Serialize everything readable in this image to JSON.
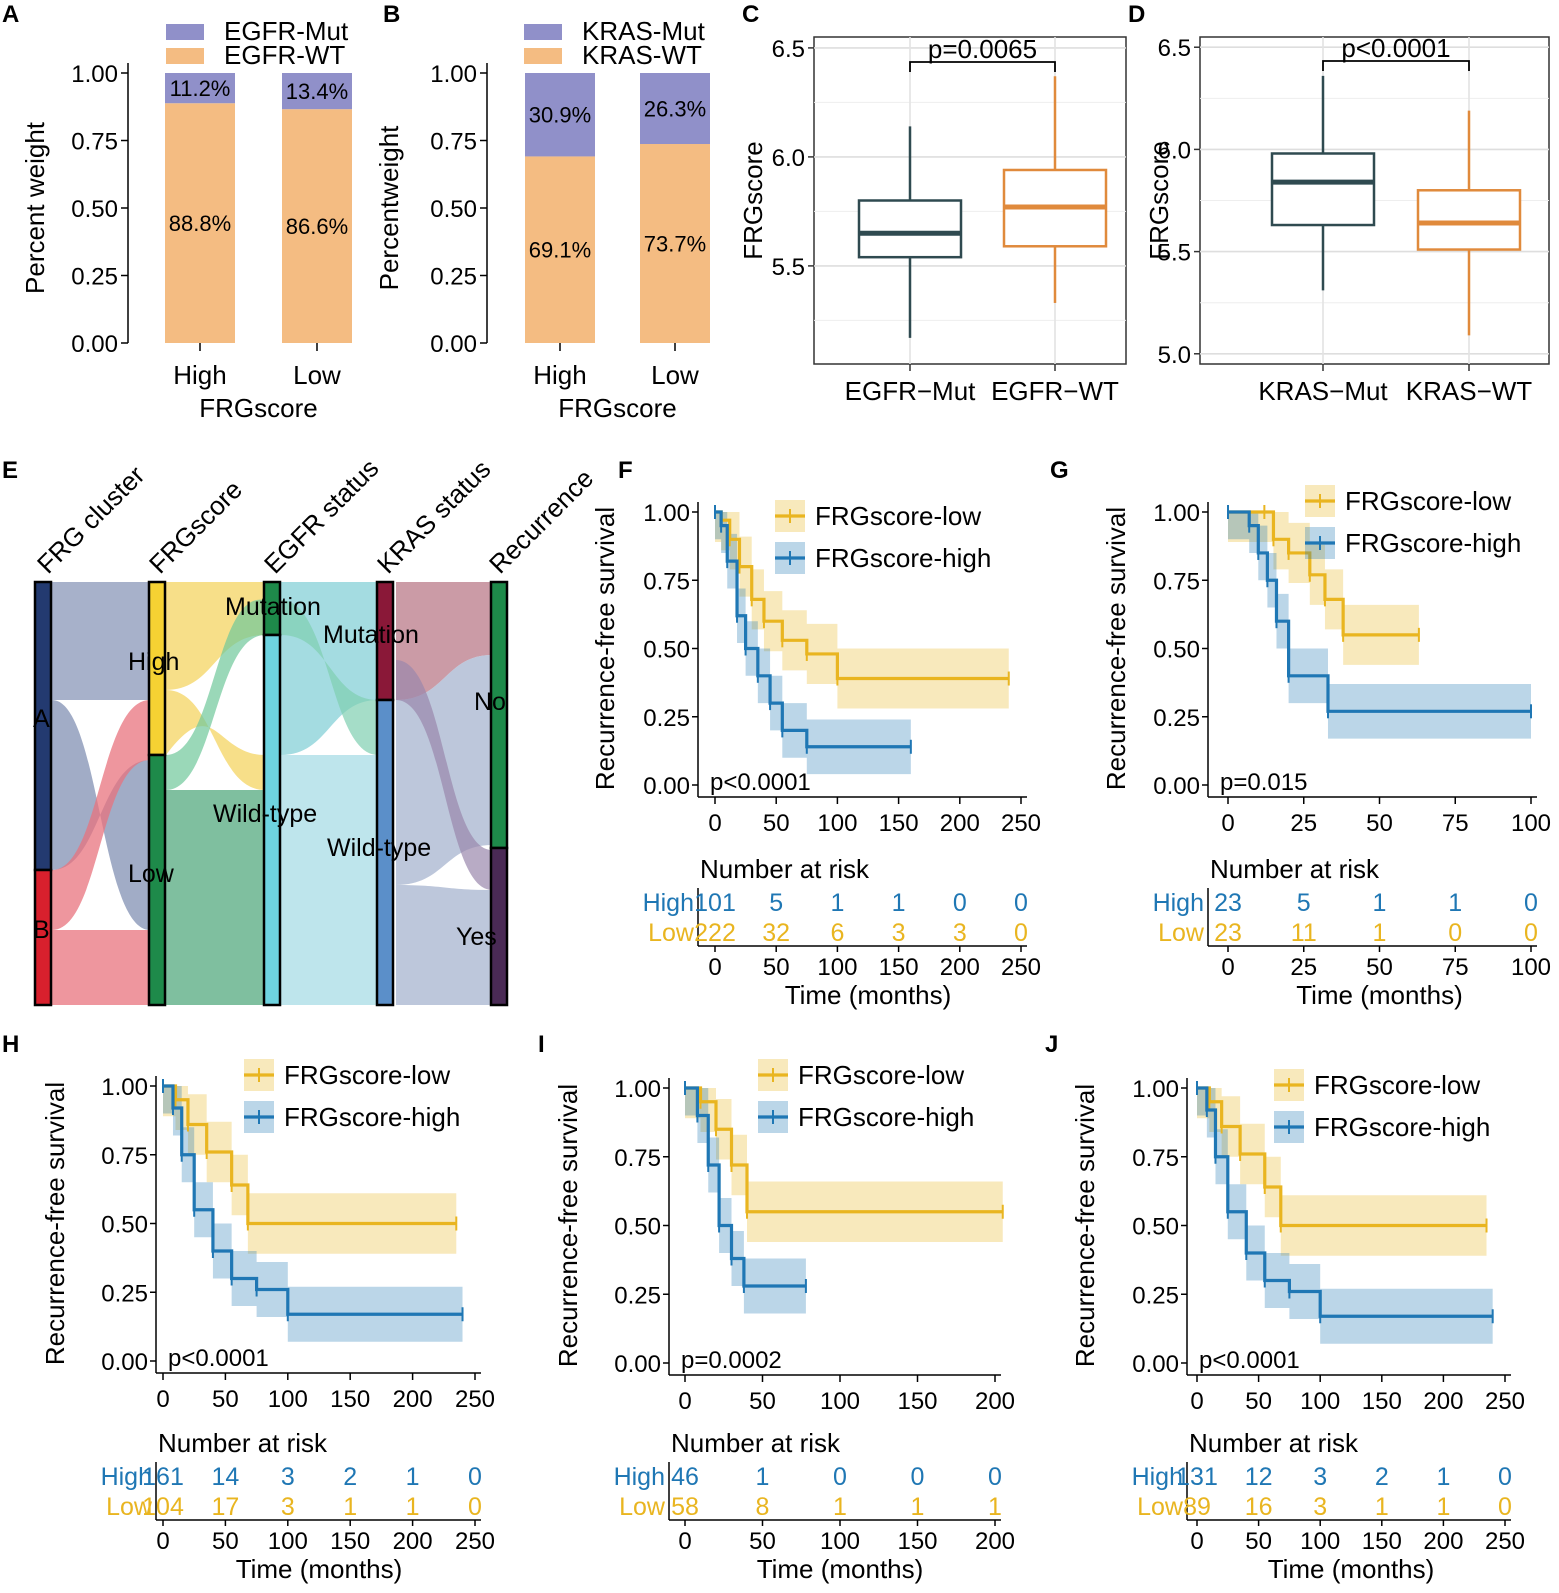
{
  "colors": {
    "mut": "#9090c9",
    "wt": "#f4bc82",
    "egfr_mut_box": "#2f4a50",
    "egfr_wt_box": "#e08a3c",
    "low": "#e9b520",
    "high": "#1f77b4"
  },
  "chart_data": [
    {
      "id": "A",
      "type": "bar",
      "stacked": true,
      "categories": [
        "High",
        "Low"
      ],
      "series": [
        {
          "name": "EGFR-Mut",
          "values": [
            0.112,
            0.134
          ],
          "labels": [
            "11.2%",
            "13.4%"
          ]
        },
        {
          "name": "EGFR-WT",
          "values": [
            0.888,
            0.866
          ],
          "labels": [
            "88.8%",
            "86.6%"
          ]
        }
      ],
      "xlabel": "FRGscore",
      "ylabel": "Percent  weight",
      "ylim": [
        0,
        1
      ],
      "yticks": [
        "0.00",
        "0.25",
        "0.50",
        "0.75",
        "1.00"
      ]
    },
    {
      "id": "B",
      "type": "bar",
      "stacked": true,
      "categories": [
        "High",
        "Low"
      ],
      "series": [
        {
          "name": "KRAS-Mut",
          "values": [
            0.309,
            0.263
          ],
          "labels": [
            "30.9%",
            "26.3%"
          ]
        },
        {
          "name": "KRAS-WT",
          "values": [
            0.691,
            0.737
          ],
          "labels": [
            "69.1%",
            "73.7%"
          ]
        }
      ],
      "xlabel": "FRGscore",
      "ylabel": "Percentweight",
      "ylim": [
        0,
        1
      ],
      "yticks": [
        "0.00",
        "0.25",
        "0.50",
        "0.75",
        "1.00"
      ]
    },
    {
      "id": "C",
      "type": "box",
      "categories": [
        "EGFR−Mut",
        "EGFR−WT"
      ],
      "boxes": [
        {
          "min": 5.17,
          "q1": 5.54,
          "median": 5.65,
          "q3": 5.8,
          "max": 6.14
        },
        {
          "min": 5.33,
          "q1": 5.59,
          "median": 5.77,
          "q3": 5.94,
          "max": 6.37
        }
      ],
      "ylabel": "FRGscore",
      "ylim": [
        5.05,
        6.55
      ],
      "yticks": [
        "5.5",
        "6.0",
        "6.5"
      ],
      "pvalue": "p=0.0065"
    },
    {
      "id": "D",
      "type": "box",
      "categories": [
        "KRAS−Mut",
        "KRAS−WT"
      ],
      "boxes": [
        {
          "min": 5.31,
          "q1": 5.63,
          "median": 5.84,
          "q3": 5.98,
          "max": 6.36
        },
        {
          "min": 5.09,
          "q1": 5.51,
          "median": 5.64,
          "q3": 5.8,
          "max": 6.19
        }
      ],
      "ylabel": "FRGscore",
      "ylim": [
        4.95,
        6.55
      ],
      "yticks": [
        "5.0",
        "5.5",
        "6.0",
        "6.5"
      ],
      "pvalue": "p<0.0001"
    },
    {
      "id": "E",
      "type": "sankey",
      "axes": [
        "FRG cluster",
        "FRGscore",
        "EGFR status",
        "KRAS status",
        "Recurrence"
      ],
      "node_labels": [
        "A",
        "B",
        "High",
        "Low",
        "Mutation",
        "Wild-type",
        "Mutation",
        "Wild-type",
        "No",
        "Yes"
      ]
    },
    {
      "id": "F",
      "type": "line",
      "subtype": "kaplan-meier",
      "xlim": [
        0,
        250
      ],
      "xticks": [
        "0",
        "50",
        "100",
        "150",
        "200",
        "250"
      ],
      "yticks": [
        "0.00",
        "0.25",
        "0.50",
        "0.75",
        "1.00"
      ],
      "ylabel": "Recurrence-free survival",
      "xlabel": "Time (months)",
      "pvalue": "p<0.0001",
      "legend": [
        "FRGscore-low",
        "FRGscore-high"
      ],
      "low": [
        [
          0,
          1
        ],
        [
          5,
          0.97
        ],
        [
          12,
          0.9
        ],
        [
          20,
          0.8
        ],
        [
          30,
          0.68
        ],
        [
          40,
          0.6
        ],
        [
          55,
          0.53
        ],
        [
          75,
          0.48
        ],
        [
          100,
          0.39
        ],
        [
          240,
          0.39
        ]
      ],
      "high": [
        [
          0,
          1
        ],
        [
          5,
          0.95
        ],
        [
          10,
          0.82
        ],
        [
          18,
          0.62
        ],
        [
          25,
          0.5
        ],
        [
          35,
          0.4
        ],
        [
          45,
          0.3
        ],
        [
          55,
          0.2
        ],
        [
          75,
          0.14
        ],
        [
          160,
          0.14
        ]
      ],
      "risk_title": "Number at risk",
      "risk_labels": [
        "High",
        "Low"
      ],
      "risk_high": [
        "101",
        "5",
        "1",
        "1",
        "0",
        "0"
      ],
      "risk_low": [
        "222",
        "32",
        "6",
        "3",
        "3",
        "0"
      ]
    },
    {
      "id": "G",
      "type": "line",
      "subtype": "kaplan-meier",
      "xlim": [
        0,
        100
      ],
      "xticks": [
        "0",
        "25",
        "50",
        "75",
        "100"
      ],
      "yticks": [
        "0.00",
        "0.25",
        "0.50",
        "0.75",
        "1.00"
      ],
      "ylabel": "Recurrence-free survival",
      "xlabel": "Time (months)",
      "pvalue": "p=0.015",
      "legend": [
        "FRGscore-low",
        "FRGscore-high"
      ],
      "low": [
        [
          0,
          1
        ],
        [
          12,
          1
        ],
        [
          15,
          0.9
        ],
        [
          20,
          0.85
        ],
        [
          27,
          0.77
        ],
        [
          32,
          0.68
        ],
        [
          38,
          0.55
        ],
        [
          63,
          0.55
        ]
      ],
      "high": [
        [
          0,
          1
        ],
        [
          7,
          0.95
        ],
        [
          10,
          0.85
        ],
        [
          13,
          0.75
        ],
        [
          16,
          0.6
        ],
        [
          20,
          0.4
        ],
        [
          33,
          0.27
        ],
        [
          100,
          0.27
        ]
      ],
      "risk_title": "Number at risk",
      "risk_labels": [
        "High",
        "Low"
      ],
      "risk_high": [
        "23",
        "5",
        "1",
        "1",
        "0"
      ],
      "risk_low": [
        "23",
        "11",
        "1",
        "0",
        "0"
      ]
    },
    {
      "id": "H",
      "type": "line",
      "subtype": "kaplan-meier",
      "xlim": [
        0,
        250
      ],
      "xticks": [
        "0",
        "50",
        "100",
        "150",
        "200",
        "250"
      ],
      "yticks": [
        "0.00",
        "0.25",
        "0.50",
        "0.75",
        "1.00"
      ],
      "ylabel": "Recurrence-free survival",
      "xlabel": "Time (months)",
      "pvalue": "p<0.0001",
      "legend": [
        "FRGscore-low",
        "FRGscore-high"
      ],
      "low": [
        [
          0,
          1
        ],
        [
          10,
          0.95
        ],
        [
          20,
          0.86
        ],
        [
          35,
          0.76
        ],
        [
          55,
          0.64
        ],
        [
          68,
          0.5
        ],
        [
          235,
          0.5
        ]
      ],
      "high": [
        [
          0,
          1
        ],
        [
          8,
          0.92
        ],
        [
          15,
          0.75
        ],
        [
          25,
          0.55
        ],
        [
          40,
          0.4
        ],
        [
          55,
          0.3
        ],
        [
          75,
          0.26
        ],
        [
          100,
          0.17
        ],
        [
          240,
          0.17
        ]
      ],
      "risk_title": "Number at risk",
      "risk_labels": [
        "High",
        "Low"
      ],
      "risk_high": [
        "161",
        "14",
        "3",
        "2",
        "1",
        "0"
      ],
      "risk_low": [
        "104",
        "17",
        "3",
        "1",
        "1",
        "0"
      ]
    },
    {
      "id": "I",
      "type": "line",
      "subtype": "kaplan-meier",
      "xlim": [
        0,
        200
      ],
      "xticks": [
        "0",
        "50",
        "100",
        "150",
        "200"
      ],
      "yticks": [
        "0.00",
        "0.25",
        "0.50",
        "0.75",
        "1.00"
      ],
      "ylabel": "Recurrence-free survival",
      "xlabel": "Time (months)",
      "pvalue": "p=0.0002",
      "legend": [
        "FRGscore-low",
        "FRGscore-high"
      ],
      "low": [
        [
          0,
          1
        ],
        [
          10,
          0.95
        ],
        [
          20,
          0.85
        ],
        [
          30,
          0.72
        ],
        [
          40,
          0.55
        ],
        [
          205,
          0.55
        ]
      ],
      "high": [
        [
          0,
          1
        ],
        [
          8,
          0.9
        ],
        [
          15,
          0.72
        ],
        [
          22,
          0.5
        ],
        [
          30,
          0.38
        ],
        [
          38,
          0.28
        ],
        [
          78,
          0.28
        ]
      ],
      "risk_title": "Number at risk",
      "risk_labels": [
        "High",
        "Low"
      ],
      "risk_high": [
        "46",
        "1",
        "0",
        "0",
        "0"
      ],
      "risk_low": [
        "58",
        "8",
        "1",
        "1",
        "1"
      ]
    },
    {
      "id": "J",
      "type": "line",
      "subtype": "kaplan-meier",
      "xlim": [
        0,
        250
      ],
      "xticks": [
        "0",
        "50",
        "100",
        "150",
        "200",
        "250"
      ],
      "yticks": [
        "0.00",
        "0.25",
        "0.50",
        "0.75",
        "1.00"
      ],
      "ylabel": "Recurrence-free survival",
      "xlabel": "Time (months)",
      "pvalue": "p<0.0001",
      "legend": [
        "FRGscore-low",
        "FRGscore-high"
      ],
      "low": [
        [
          0,
          1
        ],
        [
          10,
          0.95
        ],
        [
          20,
          0.86
        ],
        [
          35,
          0.76
        ],
        [
          55,
          0.64
        ],
        [
          68,
          0.5
        ],
        [
          235,
          0.5
        ]
      ],
      "high": [
        [
          0,
          1
        ],
        [
          8,
          0.92
        ],
        [
          15,
          0.75
        ],
        [
          25,
          0.55
        ],
        [
          40,
          0.4
        ],
        [
          55,
          0.3
        ],
        [
          75,
          0.26
        ],
        [
          100,
          0.17
        ],
        [
          240,
          0.17
        ]
      ],
      "risk_title": "Number at risk",
      "risk_labels": [
        "High",
        "Low"
      ],
      "risk_high": [
        "131",
        "12",
        "3",
        "2",
        "1",
        "0"
      ],
      "risk_low": [
        "89",
        "16",
        "3",
        "1",
        "1",
        "0"
      ]
    }
  ]
}
